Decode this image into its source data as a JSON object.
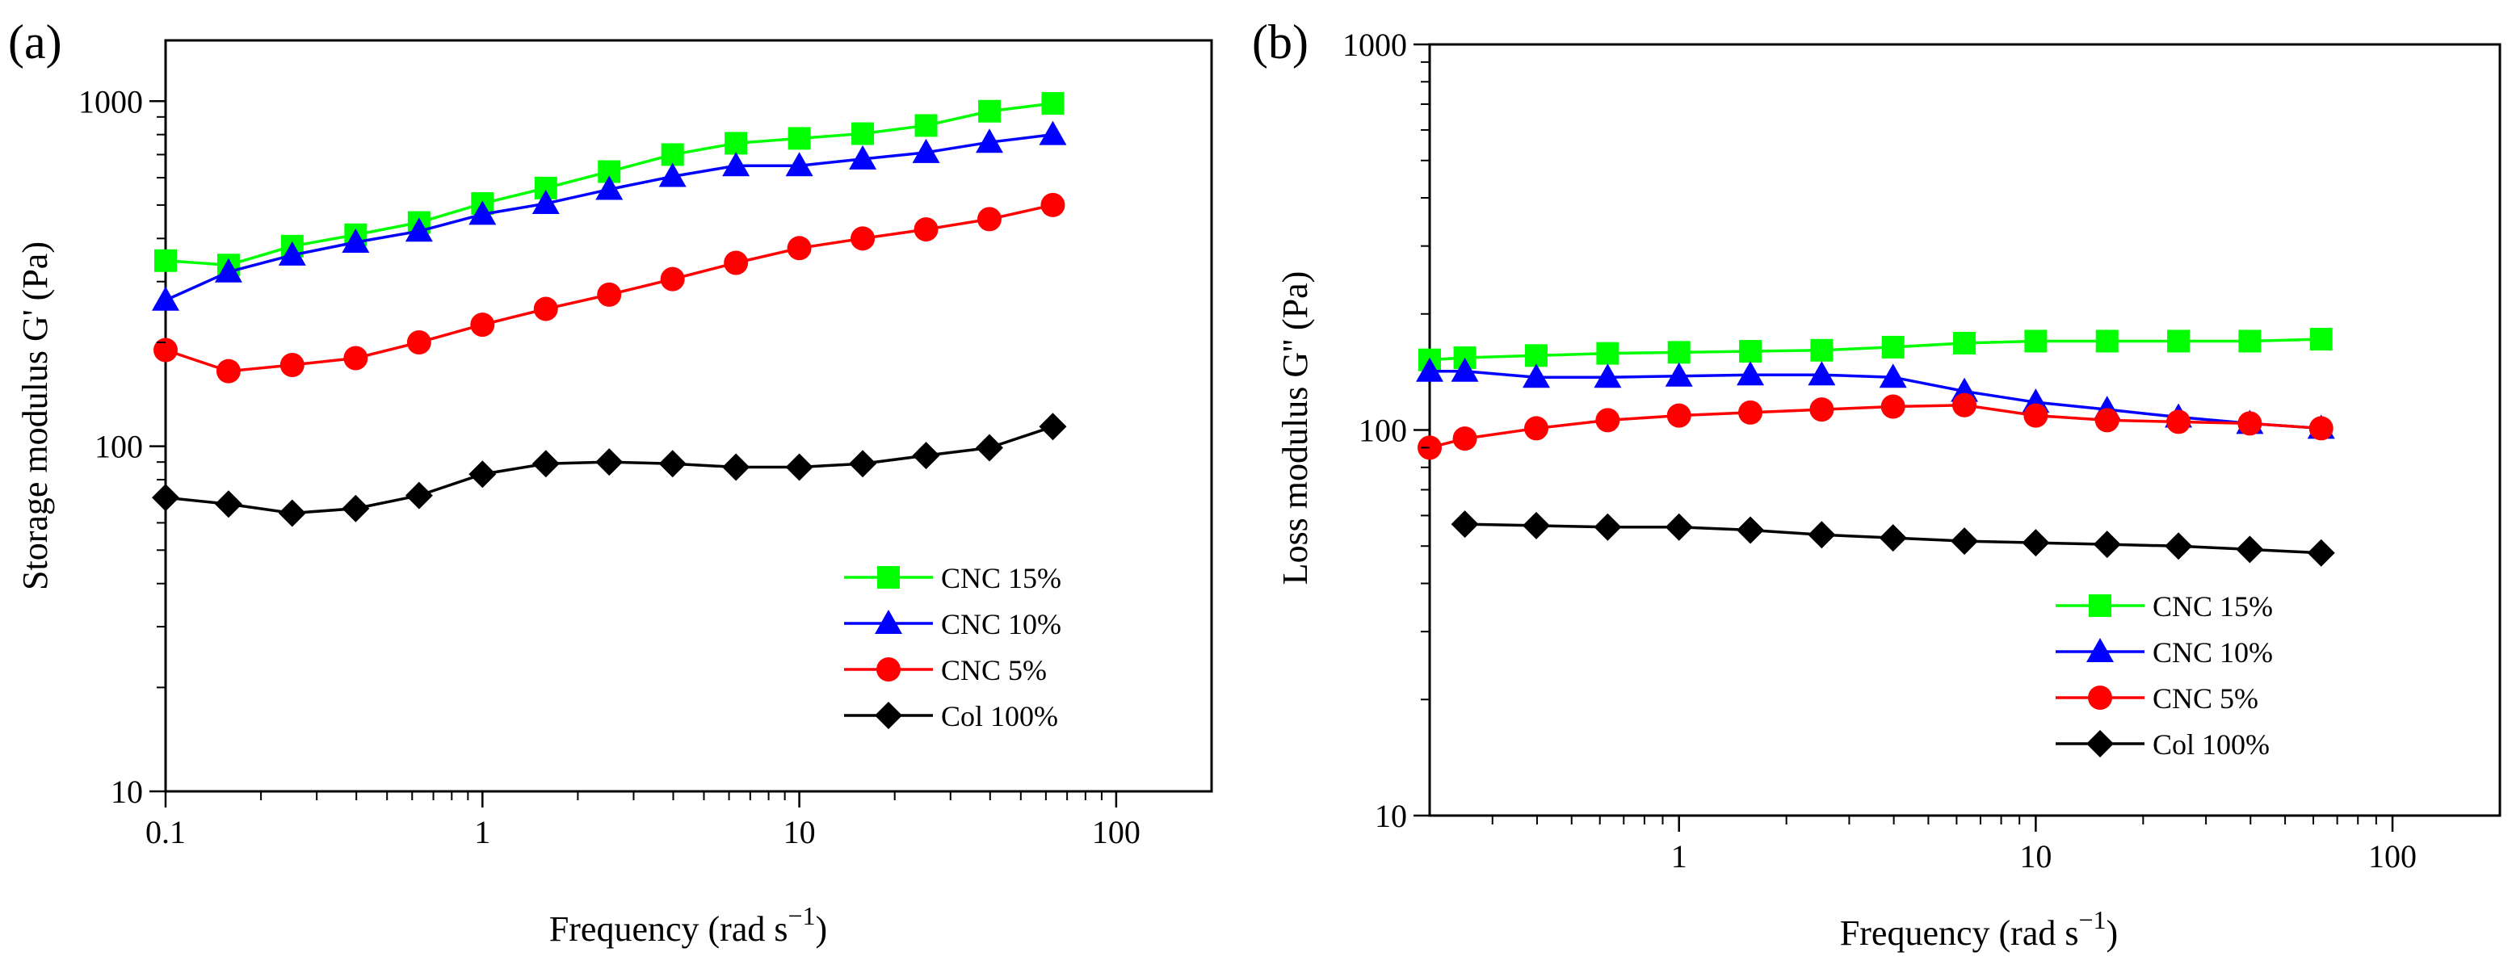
{
  "chart_data": [
    {
      "type": "line",
      "panel_label": "(a)",
      "xscale": "log",
      "yscale": "log",
      "xlim": [
        0.1,
        200
      ],
      "ylim": [
        10,
        1500
      ],
      "xticks": [
        0.1,
        1,
        10,
        100
      ],
      "xtick_labels": [
        "0.1",
        "1",
        "10",
        "100"
      ],
      "yticks": [
        10,
        100,
        1000
      ],
      "ytick_labels": [
        "10",
        "100",
        "1000"
      ],
      "xlabel": "Frequency (rad s",
      "xlabel_sup": "−1",
      "xlabel_tail": ")",
      "ylabel": "Storage modulus G' (Pa)",
      "legend_position": "bottom-right",
      "x": [
        0.1,
        0.158,
        0.251,
        0.398,
        0.631,
        1.0,
        1.585,
        2.512,
        3.981,
        6.31,
        10.0,
        15.85,
        25.12,
        39.81,
        63.1
      ],
      "series": [
        {
          "name": "CNC 15%",
          "color": "#00ff00",
          "marker": "square",
          "values": [
            345,
            335,
            380,
            410,
            445,
            505,
            560,
            625,
            700,
            755,
            780,
            805,
            850,
            935,
            985
          ]
        },
        {
          "name": "CNC 10%",
          "color": "#0000ff",
          "marker": "triangle",
          "values": [
            265,
            320,
            358,
            390,
            420,
            470,
            505,
            555,
            605,
            650,
            650,
            680,
            710,
            760,
            800
          ]
        },
        {
          "name": "CNC 5%",
          "color": "#ff0000",
          "marker": "circle",
          "values": [
            190,
            165,
            172,
            180,
            200,
            225,
            250,
            275,
            305,
            340,
            375,
            400,
            425,
            455,
            500
          ]
        },
        {
          "name": "Col 100%",
          "color": "#000000",
          "marker": "diamond",
          "values": [
            71,
            68,
            64,
            66,
            72,
            83,
            89,
            90,
            89,
            87,
            87,
            89,
            94,
            99,
            114
          ]
        }
      ]
    },
    {
      "type": "line",
      "panel_label": "(b)",
      "xscale": "log",
      "yscale": "log",
      "xlim": [
        0.2,
        200
      ],
      "ylim": [
        10,
        1000
      ],
      "xticks": [
        1,
        10,
        100
      ],
      "xtick_labels": [
        "1",
        "10",
        "100"
      ],
      "yticks": [
        10,
        100,
        1000
      ],
      "ytick_labels": [
        "10",
        "100",
        "1000"
      ],
      "xlabel": "Frequency (rad s",
      "xlabel_sup": "−1",
      "xlabel_tail": ")",
      "ylabel": "Loss modulus G'' (Pa)",
      "legend_position": "bottom-right",
      "x": [
        0.2,
        0.251,
        0.398,
        0.631,
        1.0,
        1.585,
        2.512,
        3.981,
        6.31,
        10.0,
        15.85,
        25.12,
        39.81,
        63.1
      ],
      "series": [
        {
          "name": "CNC 15%",
          "color": "#00ff00",
          "marker": "square",
          "values": [
            152,
            154,
            156,
            158,
            159,
            160,
            161,
            164,
            168,
            170,
            170,
            170,
            170,
            172
          ]
        },
        {
          "name": "CNC 10%",
          "color": "#0000ff",
          "marker": "triangle",
          "values": [
            142,
            142,
            137,
            137,
            138,
            139,
            139,
            137,
            126,
            118,
            113,
            108,
            104,
            101
          ]
        },
        {
          "name": "CNC 5%",
          "color": "#ff0000",
          "marker": "circle",
          "values": [
            90,
            95,
            101,
            106,
            109,
            111,
            113,
            115,
            116,
            109,
            106,
            105,
            104,
            101
          ]
        },
        {
          "name": "Col 100%",
          "color": "#000000",
          "marker": "diamond",
          "values": [
            null,
            57,
            56.5,
            56,
            56,
            55,
            53.5,
            52.5,
            51.5,
            51,
            50.5,
            50,
            49,
            48
          ]
        }
      ]
    }
  ]
}
